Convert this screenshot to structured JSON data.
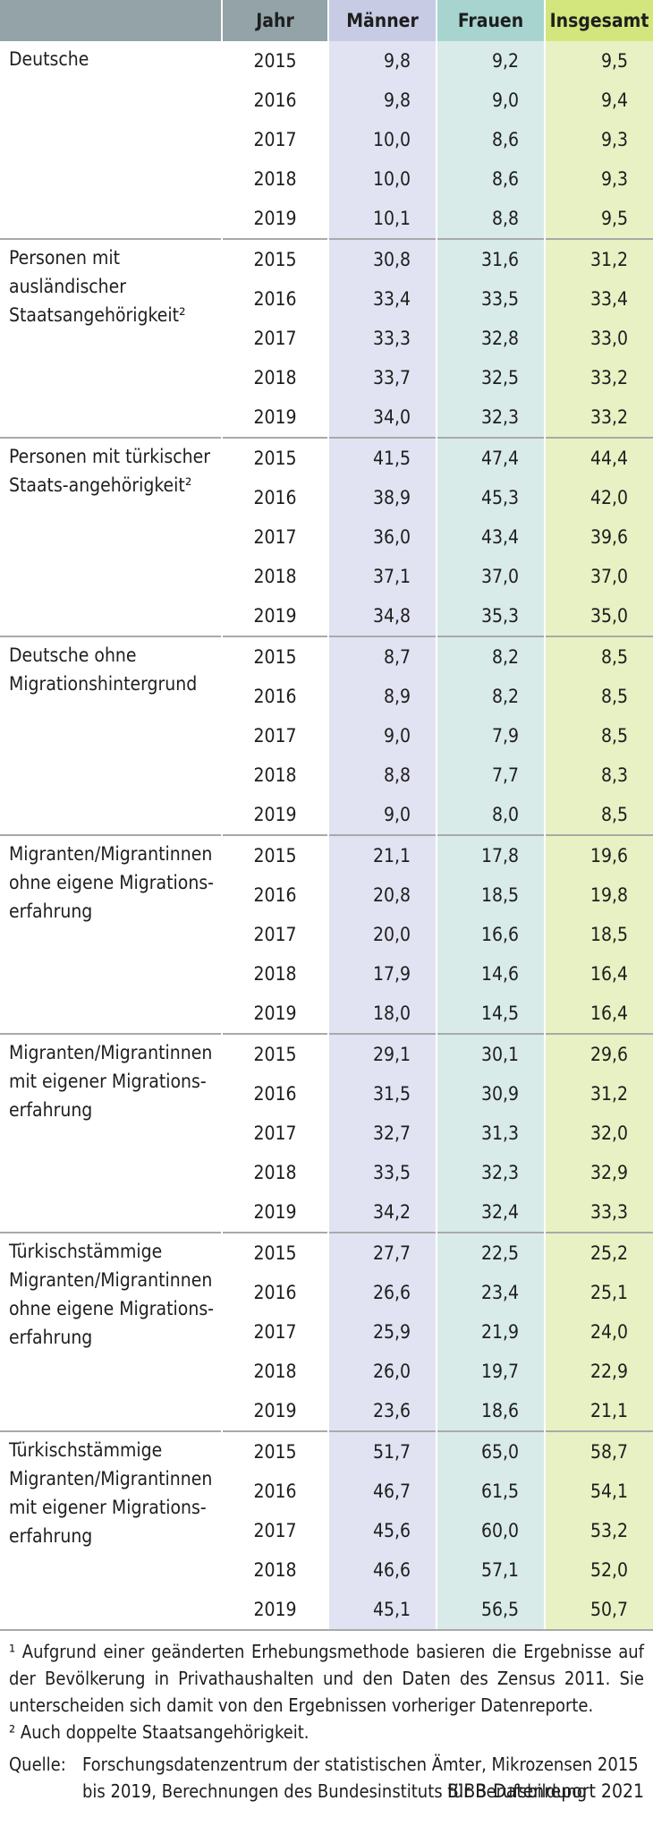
{
  "header": {
    "label": "",
    "year": "Jahr",
    "maenner": "Männer",
    "frauen": "Frauen",
    "insgesamt": "Insgesamt"
  },
  "groups": [
    {
      "label": "Deutsche",
      "rows": [
        {
          "year": "2015",
          "m": "9,8",
          "f": "9,2",
          "t": "9,5"
        },
        {
          "year": "2016",
          "m": "9,8",
          "f": "9,0",
          "t": "9,4"
        },
        {
          "year": "2017",
          "m": "10,0",
          "f": "8,6",
          "t": "9,3"
        },
        {
          "year": "2018",
          "m": "10,0",
          "f": "8,6",
          "t": "9,3"
        },
        {
          "year": "2019",
          "m": "10,1",
          "f": "8,8",
          "t": "9,5"
        }
      ]
    },
    {
      "label": "Personen mit ausländischer Staatsangehörigkeit²",
      "rows": [
        {
          "year": "2015",
          "m": "30,8",
          "f": "31,6",
          "t": "31,2"
        },
        {
          "year": "2016",
          "m": "33,4",
          "f": "33,5",
          "t": "33,4"
        },
        {
          "year": "2017",
          "m": "33,3",
          "f": "32,8",
          "t": "33,0"
        },
        {
          "year": "2018",
          "m": "33,7",
          "f": "32,5",
          "t": "33,2"
        },
        {
          "year": "2019",
          "m": "34,0",
          "f": "32,3",
          "t": "33,2"
        }
      ]
    },
    {
      "label": "Personen mit türkischer Staats-angehörigkeit²",
      "rows": [
        {
          "year": "2015",
          "m": "41,5",
          "f": "47,4",
          "t": "44,4"
        },
        {
          "year": "2016",
          "m": "38,9",
          "f": "45,3",
          "t": "42,0"
        },
        {
          "year": "2017",
          "m": "36,0",
          "f": "43,4",
          "t": "39,6"
        },
        {
          "year": "2018",
          "m": "37,1",
          "f": "37,0",
          "t": "37,0"
        },
        {
          "year": "2019",
          "m": "34,8",
          "f": "35,3",
          "t": "35,0"
        }
      ]
    },
    {
      "label": "Deutsche ohne Migrationshintergrund",
      "rows": [
        {
          "year": "2015",
          "m": "8,7",
          "f": "8,2",
          "t": "8,5"
        },
        {
          "year": "2016",
          "m": "8,9",
          "f": "8,2",
          "t": "8,5"
        },
        {
          "year": "2017",
          "m": "9,0",
          "f": "7,9",
          "t": "8,5"
        },
        {
          "year": "2018",
          "m": "8,8",
          "f": "7,7",
          "t": "8,3"
        },
        {
          "year": "2019",
          "m": "9,0",
          "f": "8,0",
          "t": "8,5"
        }
      ]
    },
    {
      "label": "Migranten/Migrantinnen ohne eigene Migrations-erfahrung",
      "rows": [
        {
          "year": "2015",
          "m": "21,1",
          "f": "17,8",
          "t": "19,6"
        },
        {
          "year": "2016",
          "m": "20,8",
          "f": "18,5",
          "t": "19,8"
        },
        {
          "year": "2017",
          "m": "20,0",
          "f": "16,6",
          "t": "18,5"
        },
        {
          "year": "2018",
          "m": "17,9",
          "f": "14,6",
          "t": "16,4"
        },
        {
          "year": "2019",
          "m": "18,0",
          "f": "14,5",
          "t": "16,4"
        }
      ]
    },
    {
      "label": "Migranten/Migrantinnen mit eigener Migrations-erfahrung",
      "rows": [
        {
          "year": "2015",
          "m": "29,1",
          "f": "30,1",
          "t": "29,6"
        },
        {
          "year": "2016",
          "m": "31,5",
          "f": "30,9",
          "t": "31,2"
        },
        {
          "year": "2017",
          "m": "32,7",
          "f": "31,3",
          "t": "32,0"
        },
        {
          "year": "2018",
          "m": "33,5",
          "f": "32,3",
          "t": "32,9"
        },
        {
          "year": "2019",
          "m": "34,2",
          "f": "32,4",
          "t": "33,3"
        }
      ]
    },
    {
      "label": "Türkischstämmige Migranten/Migrantinnen ohne eigene Migrations-erfahrung",
      "rows": [
        {
          "year": "2015",
          "m": "27,7",
          "f": "22,5",
          "t": "25,2"
        },
        {
          "year": "2016",
          "m": "26,6",
          "f": "23,4",
          "t": "25,1"
        },
        {
          "year": "2017",
          "m": "25,9",
          "f": "21,9",
          "t": "24,0"
        },
        {
          "year": "2018",
          "m": "26,0",
          "f": "19,7",
          "t": "22,9"
        },
        {
          "year": "2019",
          "m": "23,6",
          "f": "18,6",
          "t": "21,1"
        }
      ]
    },
    {
      "label": "Türkischstämmige Migranten/Migrantinnen mit eigener Migrations-erfahrung",
      "rows": [
        {
          "year": "2015",
          "m": "51,7",
          "f": "65,0",
          "t": "58,7"
        },
        {
          "year": "2016",
          "m": "46,7",
          "f": "61,5",
          "t": "54,1"
        },
        {
          "year": "2017",
          "m": "45,6",
          "f": "60,0",
          "t": "53,2"
        },
        {
          "year": "2018",
          "m": "46,6",
          "f": "57,1",
          "t": "52,0"
        },
        {
          "year": "2019",
          "m": "45,1",
          "f": "56,5",
          "t": "50,7"
        }
      ]
    }
  ],
  "footnotes": {
    "fn1": "¹ Aufgrund einer geänderten Erhebungsmethode basieren die Ergebnisse auf der Bevölkerung in Privathaushalten und den Daten des Zensus 2011. Sie unterscheiden sich damit von den Ergebnissen vorheriger Datenreporte.",
    "fn2": "² Auch doppelte Staatsangehörigkeit.",
    "source_label": "Quelle:",
    "source_text": "Forschungsdatenzentrum der statistischen Ämter, Mikrozensen 2015 bis 2019, Berechnungen des Bundesinstituts für Berufsbildung",
    "credit": "BIBB-Datenreport 2021"
  }
}
